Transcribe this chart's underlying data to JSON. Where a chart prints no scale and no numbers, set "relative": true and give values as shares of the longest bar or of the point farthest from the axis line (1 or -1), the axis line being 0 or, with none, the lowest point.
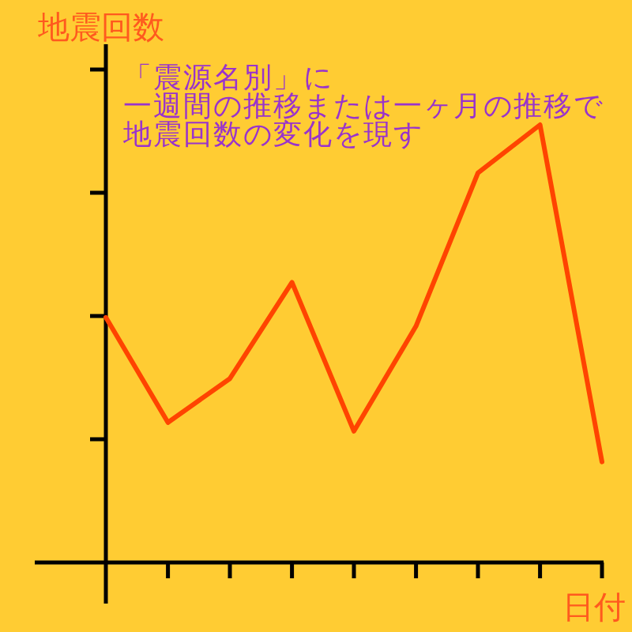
{
  "chart_data": {
    "type": "line",
    "ylabel": "地震回数",
    "xlabel": "日付",
    "annotations": [
      "「震源名別」に",
      "一週間の推移または一ヶ月の推移で",
      "地震回数の変化を現す"
    ],
    "categories": [
      null,
      null,
      null,
      null,
      null,
      null,
      null,
      null,
      null
    ],
    "relative": true,
    "series": [
      {
        "color": "#ff4400",
        "values": [
          0.56,
          0.32,
          0.42,
          0.64,
          0.3,
          0.54,
          0.89,
          1,
          0.23
        ]
      }
    ]
  }
}
